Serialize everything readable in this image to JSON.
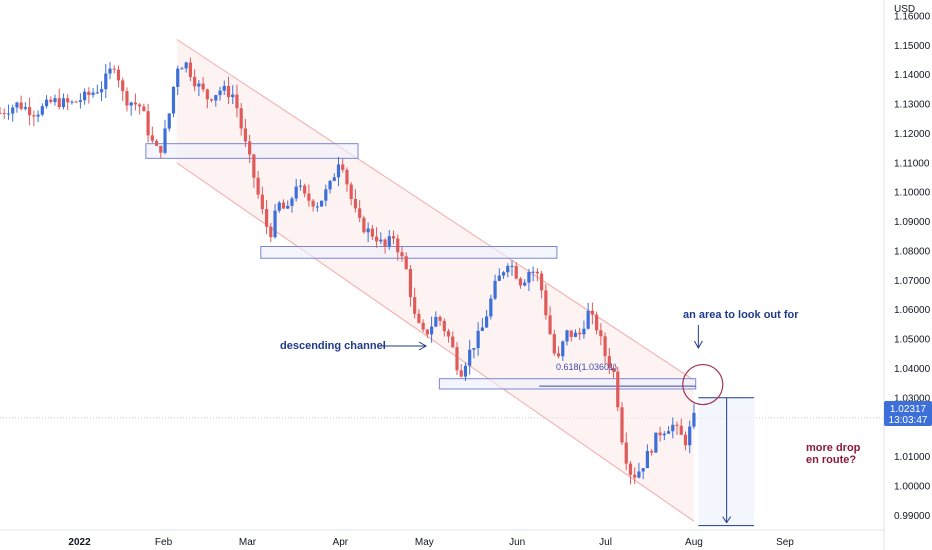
{
  "chart_data": {
    "type": "candlestick",
    "currency": "USD",
    "y_ticks": [
      "1.16000",
      "1.15000",
      "1.14000",
      "1.13000",
      "1.12000",
      "1.11000",
      "1.10000",
      "1.09000",
      "1.08000",
      "1.07000",
      "1.06000",
      "1.05000",
      "1.04000",
      "1.03000",
      "1.01000",
      "1.00000",
      "0.99000"
    ],
    "ylim": [
      0.985,
      1.162
    ],
    "x_ticks": [
      {
        "label": "2022",
        "pos": 0.09,
        "bold": true
      },
      {
        "label": "Feb",
        "pos": 0.185
      },
      {
        "label": "Mar",
        "pos": 0.28
      },
      {
        "label": "Apr",
        "pos": 0.385
      },
      {
        "label": "May",
        "pos": 0.48
      },
      {
        "label": "Jun",
        "pos": 0.585
      },
      {
        "label": "Jul",
        "pos": 0.685
      },
      {
        "label": "Aug",
        "pos": 0.785
      },
      {
        "label": "Sep",
        "pos": 0.888
      }
    ],
    "last_price": "1.02317",
    "countdown": "13:03:47",
    "up_color": "#3d6fd8",
    "down_color": "#e05a5a",
    "channel_color": "#f4a9a9",
    "zone_color": "#7a87d6",
    "close_path": [
      [
        0.0,
        1.127
      ],
      [
        0.02,
        1.13
      ],
      [
        0.04,
        1.127
      ],
      [
        0.06,
        1.131
      ],
      [
        0.08,
        1.13
      ],
      [
        0.1,
        1.133
      ],
      [
        0.115,
        1.136
      ],
      [
        0.13,
        1.144
      ],
      [
        0.14,
        1.132
      ],
      [
        0.16,
        1.129
      ],
      [
        0.17,
        1.118
      ],
      [
        0.18,
        1.113
      ],
      [
        0.19,
        1.124
      ],
      [
        0.2,
        1.143
      ],
      [
        0.21,
        1.144
      ],
      [
        0.22,
        1.138
      ],
      [
        0.235,
        1.132
      ],
      [
        0.25,
        1.135
      ],
      [
        0.265,
        1.133
      ],
      [
        0.275,
        1.119
      ],
      [
        0.285,
        1.108
      ],
      [
        0.295,
        1.095
      ],
      [
        0.305,
        1.085
      ],
      [
        0.315,
        1.096
      ],
      [
        0.325,
        1.093
      ],
      [
        0.335,
        1.103
      ],
      [
        0.345,
        1.098
      ],
      [
        0.36,
        1.096
      ],
      [
        0.375,
        1.103
      ],
      [
        0.385,
        1.113
      ],
      [
        0.395,
        1.1
      ],
      [
        0.405,
        1.09
      ],
      [
        0.415,
        1.087
      ],
      [
        0.425,
        1.085
      ],
      [
        0.435,
        1.081
      ],
      [
        0.445,
        1.085
      ],
      [
        0.46,
        1.073
      ],
      [
        0.47,
        1.056
      ],
      [
        0.48,
        1.051
      ],
      [
        0.495,
        1.058
      ],
      [
        0.51,
        1.049
      ],
      [
        0.52,
        1.038
      ],
      [
        0.53,
        1.045
      ],
      [
        0.545,
        1.053
      ],
      [
        0.56,
        1.068
      ],
      [
        0.575,
        1.077
      ],
      [
        0.59,
        1.069
      ],
      [
        0.6,
        1.074
      ],
      [
        0.61,
        1.071
      ],
      [
        0.62,
        1.055
      ],
      [
        0.63,
        1.041
      ],
      [
        0.64,
        1.052
      ],
      [
        0.655,
        1.051
      ],
      [
        0.665,
        1.059
      ],
      [
        0.675,
        1.054
      ],
      [
        0.685,
        1.044
      ],
      [
        0.695,
        1.038
      ],
      [
        0.705,
        1.013
      ],
      [
        0.715,
        1.003
      ],
      [
        0.725,
        1.006
      ],
      [
        0.735,
        1.012
      ],
      [
        0.745,
        1.018
      ],
      [
        0.76,
        1.021
      ],
      [
        0.775,
        1.015
      ],
      [
        0.785,
        1.023
      ]
    ],
    "channel": {
      "upper": [
        [
          0.2,
          1.152
        ],
        [
          0.785,
          1.036
        ]
      ],
      "lower": [
        [
          0.2,
          1.11
        ],
        [
          0.785,
          0.988
        ]
      ]
    },
    "zones": [
      {
        "x0": 0.165,
        "x1": 0.405,
        "y0": 1.1115,
        "y1": 1.1165
      },
      {
        "x0": 0.295,
        "x1": 0.63,
        "y0": 1.0775,
        "y1": 1.0815
      },
      {
        "x0": 0.497,
        "x1": 0.787,
        "y0": 1.033,
        "y1": 1.0365
      }
    ],
    "fib_label": "0.618(1.03601)",
    "fib_level": 1.03601,
    "annotations": {
      "descending": "descending channel",
      "area": "an area to look out for",
      "drop_line1": "more drop",
      "drop_line2": "en route?"
    },
    "projection": {
      "x0": 0.79,
      "x1": 0.853,
      "y0": 0.9865,
      "y1": 1.03
    }
  }
}
